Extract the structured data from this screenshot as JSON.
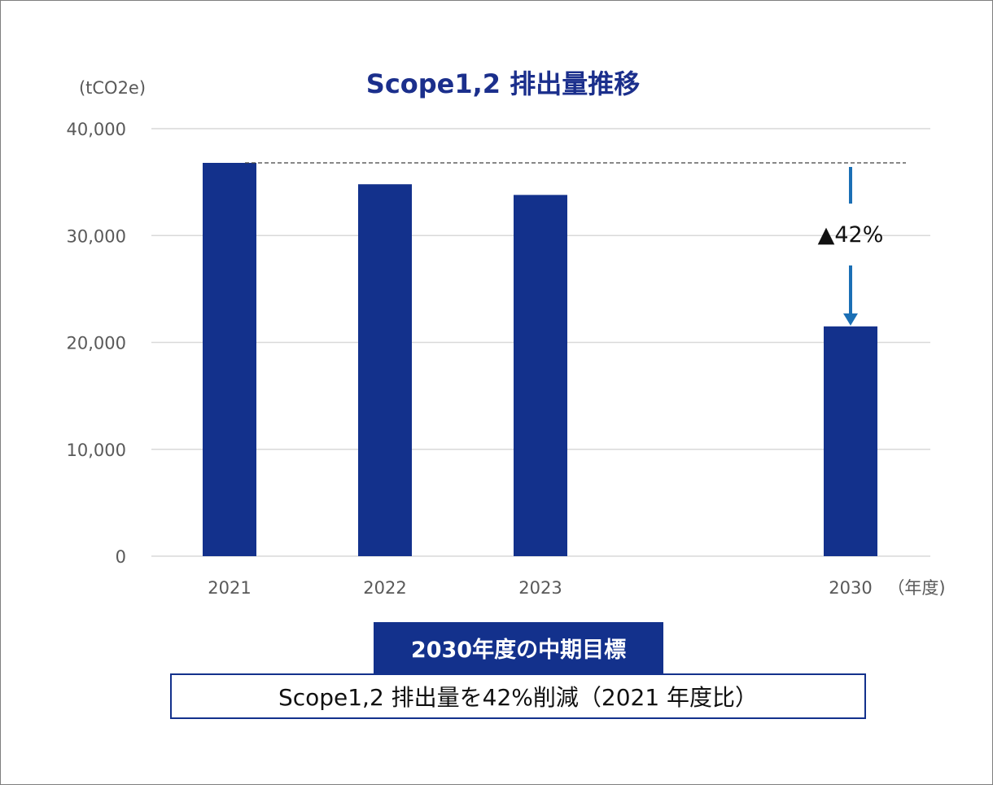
{
  "chart_data": {
    "type": "bar",
    "title": "Scope1,2 排出量推移",
    "ylabel": "(tCO2e)",
    "xlabel": "（年度)",
    "ylim": [
      0,
      40000
    ],
    "yticks": [
      "0",
      "10,000",
      "20,000",
      "30,000",
      "40,000"
    ],
    "categories": [
      "2021",
      "2022",
      "2023",
      "2030"
    ],
    "values": [
      36800,
      34800,
      33800,
      21500
    ],
    "annotation": {
      "label": "▲42%",
      "from_value": 36800,
      "to_value": 21500
    },
    "colors": {
      "bar": "#13318c",
      "arrow": "#1b6fb5",
      "grid": "#d9d9d9",
      "reference_line": "#404040"
    }
  },
  "target": {
    "badge": "2030年度の中期目標",
    "text": "Scope1,2 排出量を42%削減（2021 年度比）"
  }
}
